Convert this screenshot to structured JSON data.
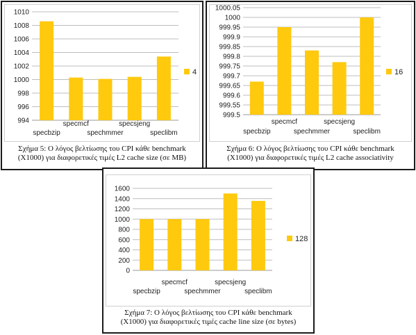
{
  "bar_color": "#FFC90E",
  "grid_color": "#bdbdbd",
  "chart_data": [
    {
      "type": "bar",
      "categories": [
        "specbzip",
        "specmcf",
        "spechmmer",
        "specsjeng",
        "speclibm"
      ],
      "series": [
        {
          "name": "4",
          "values": [
            1008.6,
            1000.3,
            1000.1,
            1000.4,
            1003.4
          ]
        }
      ],
      "ylim": [
        994,
        1010
      ],
      "yticks": [
        "994",
        "996",
        "998",
        "1000",
        "1002",
        "1004",
        "1006",
        "1008",
        "1010"
      ],
      "grid": true,
      "legend": "right",
      "caption_lines": [
        "Σχήμα 5: Ο λόγος βελτίωσης του CPI κάθε benchmark",
        "(X1000) για διαφορετικές τιμές L2 cache size (σε MB)"
      ]
    },
    {
      "type": "bar",
      "categories": [
        "specbzip",
        "specmcf",
        "spechmmer",
        "specsjeng",
        "speclibm"
      ],
      "series": [
        {
          "name": "16",
          "values": [
            999.67,
            999.95,
            999.83,
            999.77,
            1000.0
          ]
        }
      ],
      "ylim": [
        999.5,
        1000.05
      ],
      "yticks": [
        "999.5",
        "999.55",
        "999.6",
        "999.65",
        "999.7",
        "999.75",
        "999.8",
        "999.85",
        "999.9",
        "999.95",
        "1000",
        "1000.05"
      ],
      "grid": true,
      "legend": "right",
      "caption_lines": [
        "Σχήμα 6: Ο λόγος βελτίωσης του CPI κάθε benchmark",
        "(X1000) για διαφορετικές τιμές L2 cache associativity"
      ]
    },
    {
      "type": "bar",
      "categories": [
        "specbzip",
        "specmcf",
        "spechmmer",
        "specsjeng",
        "speclibm"
      ],
      "series": [
        {
          "name": "128",
          "values": [
            1000,
            1000,
            1000,
            1500,
            1355
          ]
        }
      ],
      "ylim": [
        0,
        1600
      ],
      "yticks": [
        "0",
        "200",
        "400",
        "600",
        "800",
        "1000",
        "1200",
        "1400",
        "1600"
      ],
      "grid": true,
      "legend": "right",
      "caption_lines": [
        "Σχήμα 7: Ο λόγος βελτίωσης του CPI κάθε benchmark",
        "(X1000) για διαφορετικές τιμές cache line size (σε bytes)"
      ]
    }
  ]
}
